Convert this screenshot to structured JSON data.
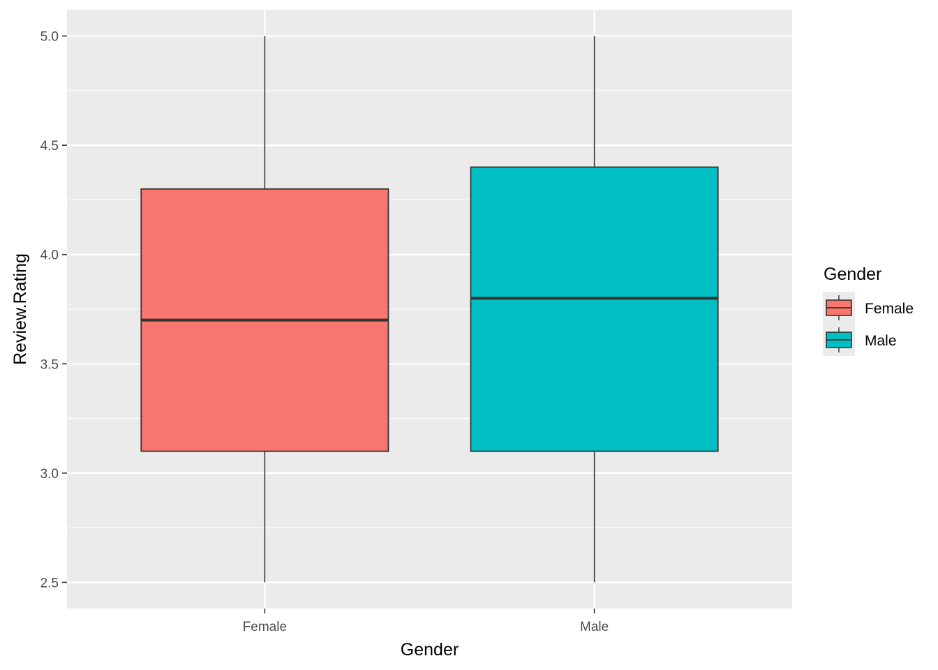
{
  "chart_data": {
    "type": "boxplot",
    "xlabel": "Gender",
    "ylabel": "Review.Rating",
    "categories": [
      "Female",
      "Male"
    ],
    "ylim": [
      2.38,
      5.12
    ],
    "yticks": [
      2.5,
      3.0,
      3.5,
      4.0,
      4.5,
      5.0
    ],
    "ytick_labels": [
      "2.5",
      "3.0",
      "3.5",
      "4.0",
      "4.5",
      "5.0"
    ],
    "grid": true,
    "legend": {
      "title": "Gender",
      "position": "right",
      "entries": [
        "Female",
        "Male"
      ]
    },
    "boxes": [
      {
        "category": "Female",
        "min": 2.5,
        "q1": 3.1,
        "median": 3.7,
        "q3": 4.3,
        "max": 5.0,
        "color": "#F8766D"
      },
      {
        "category": "Male",
        "min": 2.5,
        "q1": 3.1,
        "median": 3.8,
        "q3": 4.4,
        "max": 5.0,
        "color": "#00BFC4"
      }
    ],
    "colors": {
      "panel": "#EBEBEB",
      "grid": "#FFFFFF",
      "outline": "#333333"
    }
  }
}
